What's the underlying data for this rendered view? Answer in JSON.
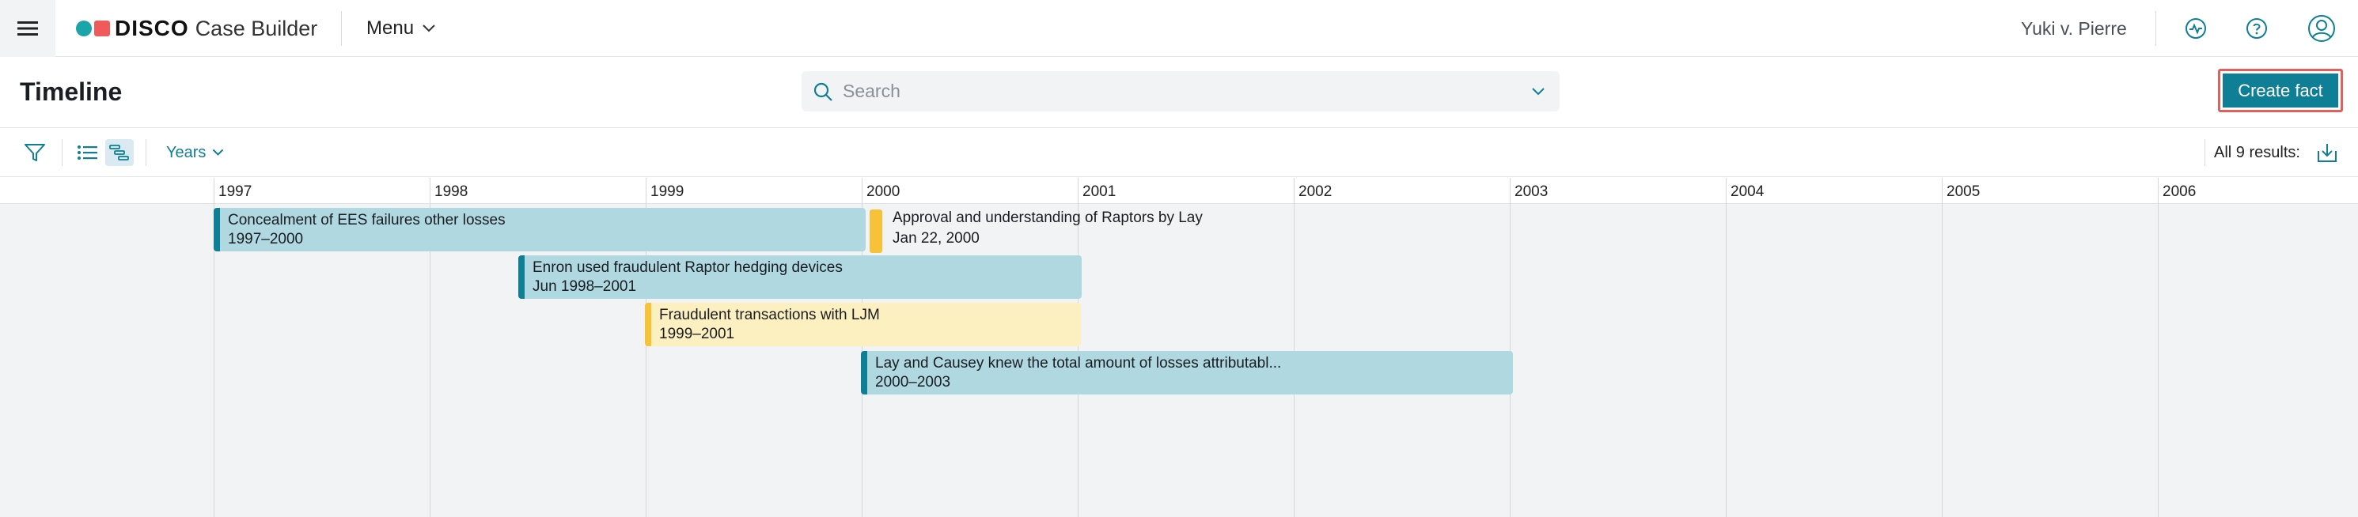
{
  "app": {
    "brand_name": "DISCO",
    "brand_sub": "Case Builder",
    "menu_label": "Menu",
    "user_name": "Yuki v. Pierre",
    "colors": {
      "accent": "#0e7f94",
      "brand_teal": "#1aa5a8",
      "brand_red": "#f05a5a",
      "highlight_outline": "#e06060"
    },
    "icons": [
      "hamburger-icon",
      "activity-icon",
      "help-icon",
      "user-icon"
    ]
  },
  "page": {
    "title": "Timeline",
    "search_placeholder": "Search",
    "search_value": "",
    "create_label": "Create fact"
  },
  "toolbar": {
    "view_modes": [
      "list-view",
      "timeline-view"
    ],
    "active_view": "timeline-view",
    "zoom_label": "Years",
    "results_label": "All 9 results:"
  },
  "timeline": {
    "years": [
      "1997",
      "1998",
      "1999",
      "2000",
      "2001",
      "2002",
      "2003",
      "2004",
      "2005",
      "2006"
    ],
    "facts": [
      {
        "title": "Concealment of EES failures other losses",
        "date": "1997–2000",
        "color": "teal"
      },
      {
        "title": "Approval and understanding of Raptors by Lay",
        "date": "Jan 22, 2000",
        "color": "yellow"
      },
      {
        "title": "Enron used fraudulent Raptor hedging devices",
        "date": "Jun 1998–2001",
        "color": "teal"
      },
      {
        "title": "Fraudulent transactions with LJM",
        "date": "1999–2001",
        "color": "yellow"
      },
      {
        "title": "Lay and Causey knew the total amount of losses attributabl...",
        "date": "2000–2003",
        "color": "teal"
      }
    ]
  }
}
